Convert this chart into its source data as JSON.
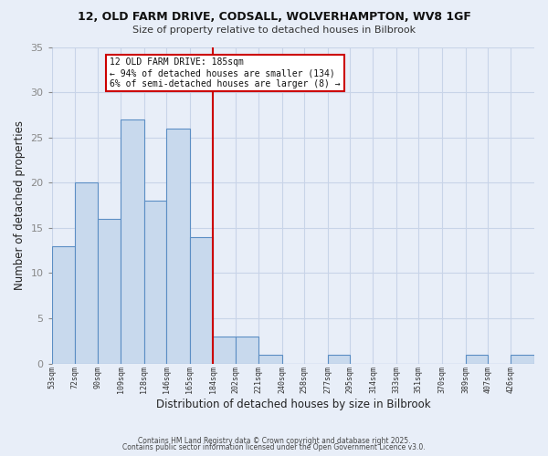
{
  "title1": "12, OLD FARM DRIVE, CODSALL, WOLVERHAMPTON, WV8 1GF",
  "title2": "Size of property relative to detached houses in Bilbrook",
  "xlabel": "Distribution of detached houses by size in Bilbrook",
  "ylabel": "Number of detached properties",
  "bin_edges": [
    53,
    72,
    90,
    109,
    128,
    146,
    165,
    184,
    202,
    221,
    240,
    258,
    277,
    295,
    314,
    333,
    351,
    370,
    389,
    407,
    426,
    445
  ],
  "bar_heights": [
    13,
    20,
    16,
    27,
    18,
    26,
    14,
    3,
    3,
    1,
    0,
    0,
    1,
    0,
    0,
    0,
    0,
    0,
    1,
    0,
    1
  ],
  "tick_labels": [
    "53sqm",
    "72sqm",
    "90sqm",
    "109sqm",
    "128sqm",
    "146sqm",
    "165sqm",
    "184sqm",
    "202sqm",
    "221sqm",
    "240sqm",
    "258sqm",
    "277sqm",
    "295sqm",
    "314sqm",
    "333sqm",
    "351sqm",
    "370sqm",
    "389sqm",
    "407sqm",
    "426sqm"
  ],
  "bar_facecolor": "#c8d9ed",
  "bar_edgecolor": "#5b8ec4",
  "grid_color": "#c8d4e8",
  "background_color": "#e8eef8",
  "vline_x": 184,
  "vline_color": "#cc0000",
  "annotation_title": "12 OLD FARM DRIVE: 185sqm",
  "annotation_line1": "← 94% of detached houses are smaller (134)",
  "annotation_line2": "6% of semi-detached houses are larger (8) →",
  "annotation_box_color": "#ffffff",
  "annotation_box_edge": "#cc0000",
  "ylim": [
    0,
    35
  ],
  "yticks": [
    0,
    5,
    10,
    15,
    20,
    25,
    30,
    35
  ],
  "footer1": "Contains HM Land Registry data © Crown copyright and database right 2025.",
  "footer2": "Contains public sector information licensed under the Open Government Licence v3.0."
}
